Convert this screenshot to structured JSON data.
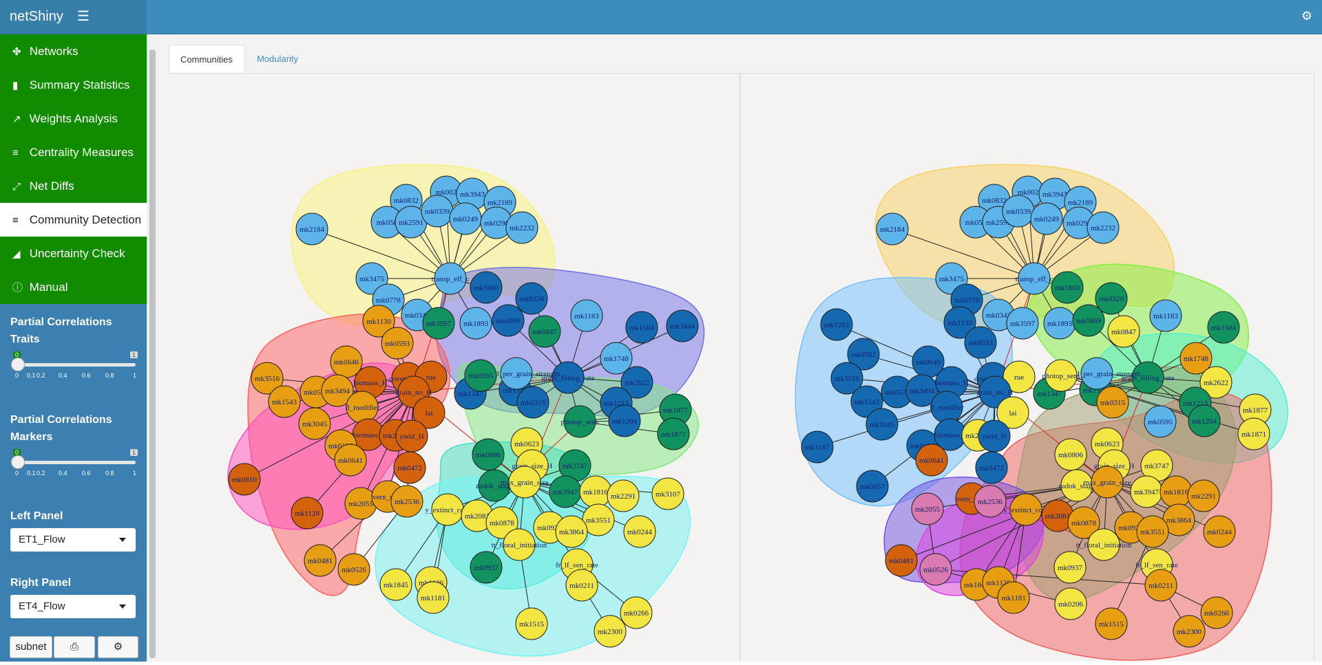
{
  "header": {
    "brand": "netShiny",
    "menu_icon": "hamburger-icon",
    "settings_icon": "gear-icon"
  },
  "sidebar": {
    "items": [
      {
        "label": "Networks",
        "icon": "network-icon"
      },
      {
        "label": "Summary Statistics",
        "icon": "bar-chart-icon"
      },
      {
        "label": "Weights Analysis",
        "icon": "line-chart-icon"
      },
      {
        "label": "Centrality Measures",
        "icon": "align-center-icon"
      },
      {
        "label": "Net Diffs",
        "icon": "compress-icon"
      },
      {
        "label": "Community Detection",
        "icon": "bar-chart-bars-icon"
      },
      {
        "label": "Uncertainty Check",
        "icon": "area-chart-icon"
      },
      {
        "label": "Manual",
        "icon": "info-icon"
      }
    ],
    "active_index": 5,
    "traits_slider": {
      "title": "Partial Correlations Traits",
      "min": "0",
      "max": "1",
      "value": "0",
      "ticks": [
        "0",
        "0.1",
        "0.2",
        "0.4",
        "0.6",
        "0.8",
        "1"
      ]
    },
    "markers_slider": {
      "title": "Partial Correlations Markers",
      "min": "0",
      "max": "1",
      "value": "0",
      "ticks": [
        "0",
        "0.1",
        "0.2",
        "0.4",
        "0.6",
        "0.8",
        "1"
      ]
    },
    "left_panel": {
      "title": "Left Panel",
      "value": "ET1_Flow"
    },
    "right_panel": {
      "title": "Right Panel",
      "value": "ET4_Flow"
    },
    "buttons": {
      "subnet": "subnet",
      "print_icon": "print-icon",
      "settings_icon": "gears-icon"
    }
  },
  "tabs": [
    {
      "label": "Communities"
    },
    {
      "label": "Modularity"
    }
  ],
  "colors": {
    "header": "#3c8dbc",
    "sidebar": "#3c7fb1",
    "menu_green": "#118c00",
    "node_light_blue": "#5cb4e8",
    "node_dark_blue": "#1569b0",
    "node_teal": "#12925f",
    "node_yellow": "#f4e642",
    "node_orange": "#e89e12",
    "node_dark_orange": "#d4620c",
    "node_pink": "#d97bb0"
  },
  "left_graph": {
    "nodes": [
      {
        "l": "mk2184",
        "c": "lb"
      },
      {
        "l": "mk0832",
        "c": "lb"
      },
      {
        "l": "mk002",
        "c": "lb"
      },
      {
        "l": "mk3943",
        "c": "lb"
      },
      {
        "l": "mk2189",
        "c": "lb"
      },
      {
        "l": "mk058",
        "c": "lb"
      },
      {
        "l": "mk2591",
        "c": "lb"
      },
      {
        "l": "mk0339",
        "c": "lb"
      },
      {
        "l": "mk0249",
        "c": "lb"
      },
      {
        "l": "mk0298",
        "c": "lb"
      },
      {
        "l": "mk2232",
        "c": "lb"
      },
      {
        "l": "mk3475",
        "c": "lb"
      },
      {
        "l": "transp_eff_c",
        "c": "lb"
      },
      {
        "l": "mk0778",
        "c": "lb"
      },
      {
        "l": "mk0343",
        "c": "lb"
      },
      {
        "l": "mk1893",
        "c": "lb"
      },
      {
        "l": "mk1860",
        "c": "db"
      },
      {
        "l": "mk0326",
        "c": "db"
      },
      {
        "l": "mk0869",
        "c": "db"
      },
      {
        "l": "mk1183",
        "c": "lb"
      },
      {
        "l": "mk1504",
        "c": "db"
      },
      {
        "l": "mk3444",
        "c": "db"
      },
      {
        "l": "mk3597",
        "c": "tl"
      },
      {
        "l": "mk0847",
        "c": "tl"
      },
      {
        "l": "mk1748",
        "c": "lb"
      },
      {
        "l": "mk2622",
        "c": "db"
      },
      {
        "l": "mk1213",
        "c": "db"
      },
      {
        "l": "mk1204",
        "c": "db"
      },
      {
        "l": "mk1877",
        "c": "tl"
      },
      {
        "l": "mk1871",
        "c": "tl"
      },
      {
        "l": "mk1347",
        "c": "db"
      },
      {
        "l": "mk1538",
        "c": "db"
      },
      {
        "l": "mk0315",
        "c": "db"
      },
      {
        "l": "grain_filling_rate",
        "c": "db"
      },
      {
        "l": "potential_per_grain_strength",
        "c": "lb"
      },
      {
        "l": "mk0595",
        "c": "tl"
      },
      {
        "l": "photop_sens",
        "c": "tl"
      },
      {
        "l": "mk1130",
        "c": "or"
      },
      {
        "l": "mk0593",
        "c": "or"
      },
      {
        "l": "mk0646",
        "c": "or"
      },
      {
        "l": "mk3516",
        "c": "or"
      },
      {
        "l": "mk1543",
        "c": "or"
      },
      {
        "l": "mk0575",
        "c": "or"
      },
      {
        "l": "mk3494",
        "c": "or"
      },
      {
        "l": "biomass_H",
        "c": "do"
      },
      {
        "l": "cover_green",
        "c": "do"
      },
      {
        "l": "rue",
        "c": "do"
      },
      {
        "l": "grain_no_H",
        "c": "do"
      },
      {
        "l": "lai",
        "c": "do"
      },
      {
        "l": "fl_modifier",
        "c": "or"
      },
      {
        "l": "mk3045",
        "c": "or"
      },
      {
        "l": "biomass_t",
        "c": "do"
      },
      {
        "l": "mk2213",
        "c": "do"
      },
      {
        "l": "yield_H",
        "c": "do"
      },
      {
        "l": "mk0199",
        "c": "or"
      },
      {
        "l": "mk0641",
        "c": "or"
      },
      {
        "l": "mk0472",
        "c": "do"
      },
      {
        "l": "mk0810",
        "c": "do"
      },
      {
        "l": "mk1128",
        "c": "do"
      },
      {
        "l": "mk2055",
        "c": "or"
      },
      {
        "l": "vern_sens",
        "c": "or"
      },
      {
        "l": "mk2536",
        "c": "or"
      },
      {
        "l": "mk0481",
        "c": "or"
      },
      {
        "l": "mk0526",
        "c": "or"
      },
      {
        "l": "mk0623",
        "c": "ye"
      },
      {
        "l": "mk0806",
        "c": "tl"
      },
      {
        "l": "grain_size_H",
        "c": "ye"
      },
      {
        "l": "mk3747",
        "c": "tl"
      },
      {
        "l": "zadok_stage",
        "c": "tl"
      },
      {
        "l": "max_grain_size",
        "c": "ye"
      },
      {
        "l": "mk3947",
        "c": "tl"
      },
      {
        "l": "mk1816",
        "c": "ye"
      },
      {
        "l": "mk2291",
        "c": "ye"
      },
      {
        "l": "mk3107",
        "c": "ye"
      },
      {
        "l": "y_extinct_coef",
        "c": "ye"
      },
      {
        "l": "mk2081",
        "c": "ye"
      },
      {
        "l": "mk0878",
        "c": "ye"
      },
      {
        "l": "mk0928",
        "c": "ye"
      },
      {
        "l": "mk3551",
        "c": "ye"
      },
      {
        "l": "mk3864",
        "c": "ye"
      },
      {
        "l": "mk0244",
        "c": "ye"
      },
      {
        "l": "tt_floral_initiation",
        "c": "ye"
      },
      {
        "l": "fr_lf_sen_rate",
        "c": "ye"
      },
      {
        "l": "mk0937",
        "c": "tl"
      },
      {
        "l": "mk1126",
        "c": "ye"
      },
      {
        "l": "mk1845",
        "c": "ye"
      },
      {
        "l": "mk1181",
        "c": "ye"
      },
      {
        "l": "mk0211",
        "c": "ye"
      },
      {
        "l": "mk1515",
        "c": "ye"
      },
      {
        "l": "mk0266",
        "c": "ye"
      },
      {
        "l": "mk2300",
        "c": "ye"
      }
    ]
  },
  "right_graph": {
    "nodes": [
      {
        "l": "mk2184",
        "c": "lb"
      },
      {
        "l": "mk0832",
        "c": "lb"
      },
      {
        "l": "mk002",
        "c": "lb"
      },
      {
        "l": "mk3943",
        "c": "lb"
      },
      {
        "l": "mk2189",
        "c": "lb"
      },
      {
        "l": "mk058",
        "c": "lb"
      },
      {
        "l": "mk2591",
        "c": "lb"
      },
      {
        "l": "mk0339",
        "c": "lb"
      },
      {
        "l": "mk0249",
        "c": "lb"
      },
      {
        "l": "mk0298",
        "c": "lb"
      },
      {
        "l": "mk2232",
        "c": "lb"
      },
      {
        "l": "mk3475",
        "c": "lb"
      },
      {
        "l": "transp_eff_c",
        "c": "lb"
      },
      {
        "l": "mk0778",
        "c": "db"
      },
      {
        "l": "mk0343",
        "c": "lb"
      },
      {
        "l": "mk1893",
        "c": "lb"
      },
      {
        "l": "mk1860",
        "c": "tl"
      },
      {
        "l": "mk0326",
        "c": "tl"
      },
      {
        "l": "mk0869",
        "c": "tl"
      },
      {
        "l": "mk1183",
        "c": "lb"
      },
      {
        "l": "mk1504",
        "c": "tl"
      },
      {
        "l": "mk0847",
        "c": "ye"
      },
      {
        "l": "mk3597",
        "c": "lb"
      },
      {
        "l": "mk1283",
        "c": "db"
      },
      {
        "l": "mk0582",
        "c": "db"
      },
      {
        "l": "mk1130",
        "c": "db"
      },
      {
        "l": "mk0593",
        "c": "db"
      },
      {
        "l": "mk0646",
        "c": "db"
      },
      {
        "l": "mk3516",
        "c": "db"
      },
      {
        "l": "mk1543",
        "c": "db"
      },
      {
        "l": "mk0575",
        "c": "db"
      },
      {
        "l": "mk3494",
        "c": "db"
      },
      {
        "l": "biomass_H",
        "c": "db"
      },
      {
        "l": "cover_green",
        "c": "db"
      },
      {
        "l": "rue",
        "c": "ye"
      },
      {
        "l": "grain_no_H",
        "c": "db"
      },
      {
        "l": "mk3045",
        "c": "db"
      },
      {
        "l": "fl_modifier",
        "c": "db"
      },
      {
        "l": "lai",
        "c": "ye"
      },
      {
        "l": "mk1167",
        "c": "db"
      },
      {
        "l": "mk0199",
        "c": "db"
      },
      {
        "l": "biomass_t",
        "c": "db"
      },
      {
        "l": "mk2213",
        "c": "ye"
      },
      {
        "l": "yield_H",
        "c": "db"
      },
      {
        "l": "mk0641",
        "c": "do"
      },
      {
        "l": "mk0472",
        "c": "db"
      },
      {
        "l": "mk0657",
        "c": "db"
      },
      {
        "l": "mk1748",
        "c": "or"
      },
      {
        "l": "mk2622",
        "c": "ye"
      },
      {
        "l": "mk1213",
        "c": "tl"
      },
      {
        "l": "mk1204",
        "c": "tl"
      },
      {
        "l": "mk1877",
        "c": "ye"
      },
      {
        "l": "mk1871",
        "c": "ye"
      },
      {
        "l": "mk1347",
        "c": "tl"
      },
      {
        "l": "mk1538",
        "c": "tl"
      },
      {
        "l": "mk0315",
        "c": "or"
      },
      {
        "l": "grain_filling_rate",
        "c": "tl"
      },
      {
        "l": "potential_per_grain_strength",
        "c": "lb"
      },
      {
        "l": "photop_sens",
        "c": "ye"
      },
      {
        "l": "mk0595",
        "c": "lb"
      },
      {
        "l": "mk0623",
        "c": "ye"
      },
      {
        "l": "mk0806",
        "c": "ye"
      },
      {
        "l": "grain_size_H",
        "c": "ye"
      },
      {
        "l": "mk3747",
        "c": "ye"
      },
      {
        "l": "zadok_stage",
        "c": "ye"
      },
      {
        "l": "max_grain_size",
        "c": "or"
      },
      {
        "l": "mk3947",
        "c": "ye"
      },
      {
        "l": "mk1816",
        "c": "or"
      },
      {
        "l": "mk2291",
        "c": "or"
      },
      {
        "l": "mk2055",
        "c": "pk"
      },
      {
        "l": "vern_sens",
        "c": "do"
      },
      {
        "l": "mk2536",
        "c": "pk"
      },
      {
        "l": "y_extinct_coef",
        "c": "or"
      },
      {
        "l": "mk2081",
        "c": "do"
      },
      {
        "l": "mk0878",
        "c": "or"
      },
      {
        "l": "mk0928",
        "c": "or"
      },
      {
        "l": "mk3864",
        "c": "or"
      },
      {
        "l": "mk3551",
        "c": "or"
      },
      {
        "l": "mk0244",
        "c": "or"
      },
      {
        "l": "mk0481",
        "c": "do"
      },
      {
        "l": "mk0526",
        "c": "pk"
      },
      {
        "l": "tt_floral_initiation",
        "c": "ye"
      },
      {
        "l": "fr_lf_sen_rate",
        "c": "ye"
      },
      {
        "l": "mk0937",
        "c": "ye"
      },
      {
        "l": "mk1845",
        "c": "or"
      },
      {
        "l": "mk1126",
        "c": "or"
      },
      {
        "l": "mk1181",
        "c": "or"
      },
      {
        "l": "mk0211",
        "c": "or"
      },
      {
        "l": "mk0206",
        "c": "ye"
      },
      {
        "l": "mk1515",
        "c": "or"
      },
      {
        "l": "mk0266",
        "c": "or"
      },
      {
        "l": "mk2300",
        "c": "or"
      }
    ]
  }
}
